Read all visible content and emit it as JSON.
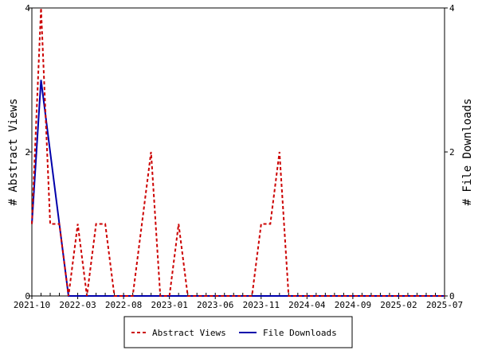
{
  "chart_data": {
    "type": "line",
    "title": "",
    "ylabel_left": "# Abstract Views",
    "ylabel_right": "# File Downloads",
    "ylim_left": [
      0,
      4
    ],
    "ylim_right": [
      0,
      4
    ],
    "yticks_left": [
      "0",
      "2",
      "4"
    ],
    "yticks_right": [
      "0",
      "2",
      "4"
    ],
    "grid": false,
    "legend_position": "bottom",
    "x_start": "2021-10",
    "x_end": "2025-07",
    "xtick_labels": [
      "2021-10",
      "2022-03",
      "2022-08",
      "2023-01",
      "2023-06",
      "2023-11",
      "2024-04",
      "2024-09",
      "2025-02",
      "2025-07"
    ],
    "x": [
      "2021-10",
      "2021-11",
      "2021-12",
      "2022-01",
      "2022-02",
      "2022-03",
      "2022-04",
      "2022-05",
      "2022-06",
      "2022-07",
      "2022-08",
      "2022-09",
      "2022-10",
      "2022-11",
      "2022-12",
      "2023-01",
      "2023-02",
      "2023-03",
      "2023-04",
      "2023-05",
      "2023-06",
      "2023-07",
      "2023-08",
      "2023-09",
      "2023-10",
      "2023-11",
      "2023-12",
      "2024-01",
      "2024-02",
      "2024-03",
      "2024-04",
      "2024-05",
      "2024-06",
      "2024-07",
      "2024-08",
      "2024-09",
      "2024-10",
      "2024-11",
      "2024-12",
      "2025-01",
      "2025-02",
      "2025-03",
      "2025-04",
      "2025-05",
      "2025-06",
      "2025-07"
    ],
    "series": [
      {
        "name": "Abstract Views",
        "axis": "left",
        "color": "#cc0000",
        "dash": "dashed",
        "values": [
          1,
          4,
          1,
          1,
          0,
          1,
          0,
          1,
          1,
          0,
          0,
          0,
          1,
          2,
          0,
          0,
          1,
          0,
          0,
          0,
          0,
          0,
          0,
          0,
          0,
          1,
          1,
          2,
          0,
          0,
          0,
          0,
          0,
          0,
          0,
          0,
          0,
          0,
          0,
          0,
          0,
          0,
          0,
          0,
          0,
          0
        ]
      },
      {
        "name": "File Downloads",
        "axis": "right",
        "color": "#0000aa",
        "dash": "solid",
        "values": [
          1,
          3,
          2,
          1,
          0,
          0,
          0,
          0,
          0,
          0,
          0,
          0,
          0,
          0,
          0,
          0,
          0,
          0,
          0,
          0,
          0,
          0,
          0,
          0,
          0,
          0,
          0,
          0,
          0,
          0,
          0,
          0,
          0,
          0,
          0,
          0,
          0,
          0,
          0,
          0,
          0,
          0,
          0,
          0,
          0,
          0
        ]
      }
    ]
  }
}
